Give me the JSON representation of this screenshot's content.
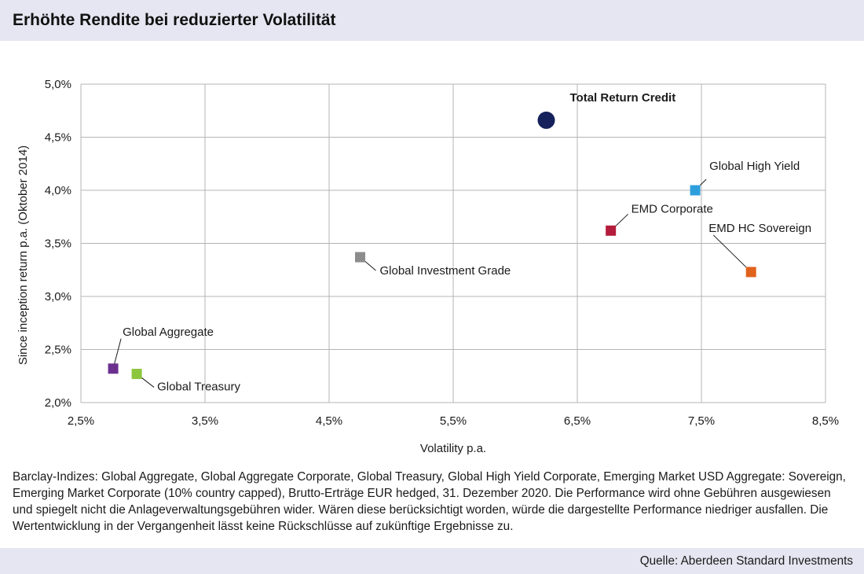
{
  "header": {
    "title": "Erhöhte Rendite bei reduzierter Volatilität"
  },
  "chart_data": {
    "type": "scatter",
    "title": "Erhöhte Rendite bei reduzierter Volatilität",
    "xlabel": "Volatility p.a.",
    "ylabel": "Since inception return p.a. (Oktober 2014)",
    "xlim": [
      2.5,
      8.5
    ],
    "ylim": [
      2.0,
      5.0
    ],
    "x_ticks": [
      "2,5%",
      "3,5%",
      "4,5%",
      "5,5%",
      "6,5%",
      "7,5%",
      "8,5%"
    ],
    "y_ticks": [
      "2,0%",
      "2,5%",
      "3,0%",
      "3,5%",
      "4,0%",
      "4,5%",
      "5,0%"
    ],
    "grid": true,
    "points": [
      {
        "label": "Total Return Credit",
        "x": 6.25,
        "y": 4.66,
        "marker": "circle",
        "color": "#14215a",
        "bold": true
      },
      {
        "label": "Global High Yield",
        "x": 7.45,
        "y": 4.0,
        "marker": "square",
        "color": "#2e9fdc",
        "bold": false
      },
      {
        "label": "EMD Corporate",
        "x": 6.77,
        "y": 3.62,
        "marker": "square",
        "color": "#b41c3c",
        "bold": false
      },
      {
        "label": "EMD HC Sovereign",
        "x": 7.9,
        "y": 3.23,
        "marker": "square",
        "color": "#e0621c",
        "bold": false
      },
      {
        "label": "Global Investment Grade",
        "x": 4.75,
        "y": 3.37,
        "marker": "square",
        "color": "#8c8c8c",
        "bold": false
      },
      {
        "label": "Global Aggregate",
        "x": 2.76,
        "y": 2.32,
        "marker": "square",
        "color": "#6b2f8e",
        "bold": false
      },
      {
        "label": "Global Treasury",
        "x": 2.95,
        "y": 2.27,
        "marker": "square",
        "color": "#8cc63f",
        "bold": false
      }
    ]
  },
  "footnote": "Barclay-Indizes: Global Aggregate, Global Aggregate Corporate, Global Treasury, Global High Yield Corporate, Emerging Market USD Aggregate: Sovereign, Emerging Market Corporate (10% country capped), Brutto-Erträge EUR hedged, 31. Dezember 2020. Die Performance wird ohne Gebühren ausgewiesen und spiegelt nicht die Anlageverwaltungsgebühren wider. Wären diese berücksichtigt worden, würde die dargestellte Performance niedriger ausfallen. Die Wertentwicklung in der Vergangenheit lässt keine Rückschlüsse auf zukünftige Ergebnisse zu.",
  "source": "Quelle: Aberdeen Standard Investments"
}
